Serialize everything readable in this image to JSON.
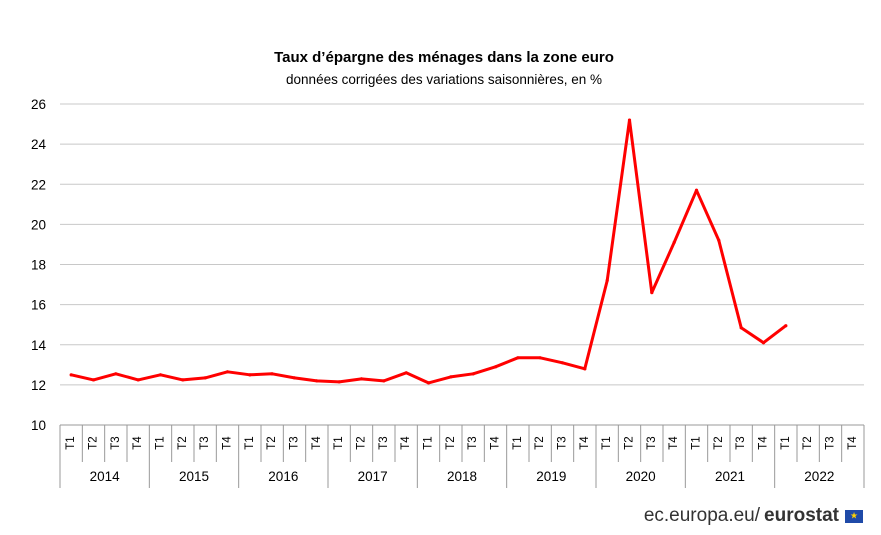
{
  "chart_data": {
    "type": "line",
    "title": "Taux d’épargne des ménages dans la zone euro",
    "subtitle": "données corrigées des variations saisonnières, en %",
    "ylim": [
      10,
      26
    ],
    "yticks": [
      "10",
      "12",
      "14",
      "16",
      "18",
      "20",
      "22",
      "24",
      "26"
    ],
    "grid": true,
    "line_color": "#ff0000",
    "years": [
      "2014",
      "2015",
      "2016",
      "2017",
      "2018",
      "2019",
      "2020",
      "2021",
      "2022"
    ],
    "quarters": [
      "T1",
      "T2",
      "T3",
      "T4"
    ],
    "values": [
      12.5,
      12.25,
      12.55,
      12.25,
      12.5,
      12.25,
      12.35,
      12.65,
      12.5,
      12.55,
      12.35,
      12.2,
      12.15,
      12.3,
      12.2,
      12.6,
      12.1,
      12.4,
      12.55,
      12.9,
      13.35,
      13.35,
      13.1,
      12.8,
      17.2,
      25.2,
      16.6,
      19.1,
      21.7,
      19.2,
      14.85,
      14.1,
      14.95,
      null,
      null,
      null
    ]
  },
  "source": {
    "prefix": "ec.europa.eu/",
    "brand": "eurostat"
  }
}
